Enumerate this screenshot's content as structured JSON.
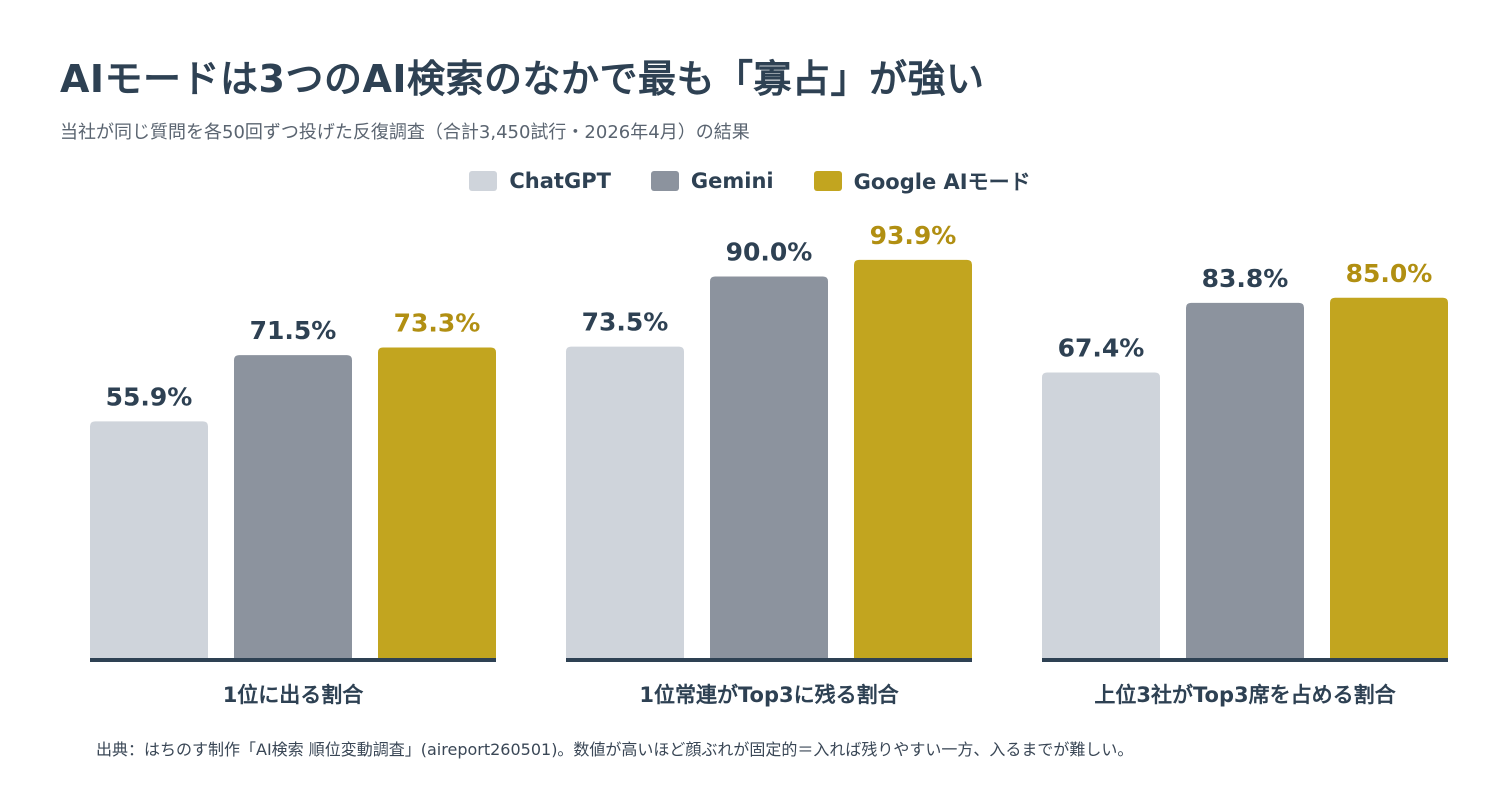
{
  "title": "AIモードは3つのAI検索のなかで最も「寡占」が強い",
  "subtitle": "当社が同じ質問を各50回ずつ投げた反復調査（合計3,450試行・2026年4月）の結果",
  "source_note": "出典：はちのす制作「AI検索 順位変動調査」(aireport260501)。数値が高いほど顔ぶれが固定的＝入れば残りやすい一方、入るまでが難しい。",
  "colors": {
    "ChatGPT": "#cfd4db",
    "Gemini": "#8c939e",
    "Google AIモード": "#c2a51f",
    "label_dark": "#2e4153",
    "label_gold": "#b18f12",
    "baseline": "#2e4153"
  },
  "chart_data": {
    "type": "bar",
    "title": "AIモードは3つのAI検索のなかで最も「寡占」が強い",
    "subtitle": "当社が同じ質問を各50回ずつ投げた反復調査（合計3,450試行・2026年4月）の結果",
    "categories": [
      "1位に出る割合",
      "1位常連がTop3に残る割合",
      "上位3社がTop3席を占める割合"
    ],
    "series": [
      {
        "name": "ChatGPT",
        "values": [
          55.9,
          73.5,
          67.4
        ],
        "labels": [
          "55.9%",
          "73.5%",
          "67.4%"
        ]
      },
      {
        "name": "Gemini",
        "values": [
          71.5,
          90.0,
          83.8
        ],
        "labels": [
          "71.5%",
          "90.0%",
          "83.8%"
        ]
      },
      {
        "name": "Google AIモード",
        "values": [
          73.3,
          93.9,
          85.0
        ],
        "labels": [
          "73.3%",
          "93.9%",
          "85.0%"
        ]
      }
    ],
    "ylim": [
      0,
      100
    ],
    "grid": false,
    "legend_position": "top-center",
    "xlabel": "",
    "ylabel": ""
  }
}
